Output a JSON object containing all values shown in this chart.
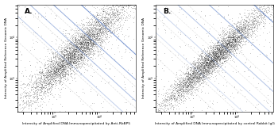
{
  "panel_A_label": "A.",
  "panel_B_label": "B.",
  "xlabel_A": "Intensity of Amplified DNA Immunoprecipitated by Anti-RbBP5",
  "xlabel_B": "Intensity of Amplified DNA Immunoprecipitated by control Rabbit IgG",
  "ylabel": "Intensity of Amplified Reference Genomic DNA",
  "scatter_color": "#111111",
  "scatter_alpha": 0.18,
  "scatter_size": 0.4,
  "seed": 42,
  "n_points": 5000,
  "xlim": [
    150,
    65000
  ],
  "ylim": [
    150,
    65000
  ],
  "blue_color": "#6688cc",
  "red_color1": "#cc2222",
  "red_color2": "#cc6666",
  "gray_color": "#999999"
}
